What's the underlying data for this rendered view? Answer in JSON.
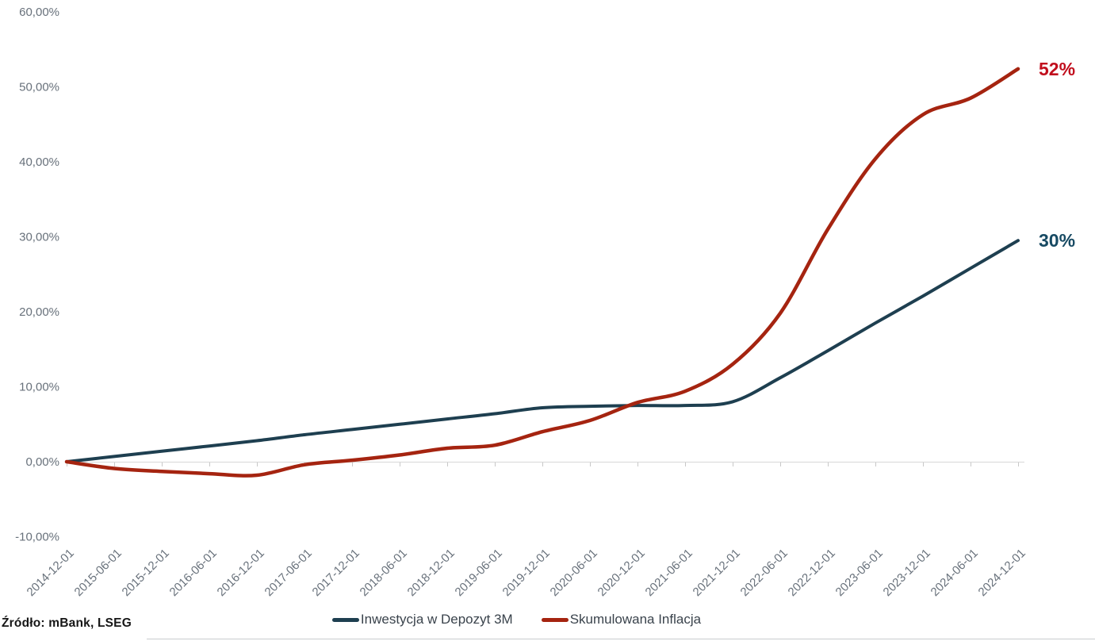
{
  "source": {
    "text": "Źródło: mBank, LSEG"
  },
  "colors": {
    "deposit_line": "#1e3f50",
    "deposit_label": "#174a63",
    "inflation_line": "#a52410",
    "inflation_label": "#c10e1d",
    "axis_text": "#68717b",
    "axis_line": "#d8d8d8",
    "tick_mark": "#c8c8c8"
  },
  "chart_data": {
    "type": "line",
    "title": "",
    "xlabel": "",
    "ylabel": "",
    "grid": false,
    "legend_position": "bottom",
    "ylim": [
      -10,
      60
    ],
    "yticks": [
      {
        "value": 60,
        "label": "60,00%"
      },
      {
        "value": 50,
        "label": "50,00%"
      },
      {
        "value": 40,
        "label": "40,00%"
      },
      {
        "value": 30,
        "label": "30,00%"
      },
      {
        "value": 20,
        "label": "20,00%"
      },
      {
        "value": 10,
        "label": "10,00%"
      },
      {
        "value": 0,
        "label": "0,00%"
      },
      {
        "value": -10,
        "label": "-10,00%"
      }
    ],
    "x": [
      "2014-12-01",
      "2015-06-01",
      "2015-12-01",
      "2016-06-01",
      "2016-12-01",
      "2017-06-01",
      "2017-12-01",
      "2018-06-01",
      "2018-12-01",
      "2019-06-01",
      "2019-12-01",
      "2020-06-01",
      "2020-12-01",
      "2021-06-01",
      "2021-12-01",
      "2022-06-01",
      "2022-12-01",
      "2023-06-01",
      "2023-12-01",
      "2024-06-01",
      "2024-12-01"
    ],
    "series": [
      {
        "name": "Inwestycja w Depozyt 3M",
        "color": "#1e3f50",
        "end_label": "30%",
        "end_label_color": "#174a63",
        "values": [
          0,
          0.7,
          1.4,
          2.1,
          2.8,
          3.6,
          4.3,
          5.0,
          5.7,
          6.4,
          7.2,
          7.4,
          7.5,
          7.5,
          8.0,
          11.2,
          14.8,
          18.5,
          22.1,
          25.8,
          29.5
        ]
      },
      {
        "name": "Skumulowana Inflacja",
        "color": "#a52410",
        "end_label": "52%",
        "end_label_color": "#c10e1d",
        "values": [
          0,
          -0.9,
          -1.3,
          -1.6,
          -1.8,
          -0.4,
          0.2,
          0.9,
          1.8,
          2.2,
          4.0,
          5.5,
          7.9,
          9.4,
          13.0,
          19.8,
          31.0,
          40.4,
          46.3,
          48.5,
          52.4
        ]
      }
    ]
  }
}
